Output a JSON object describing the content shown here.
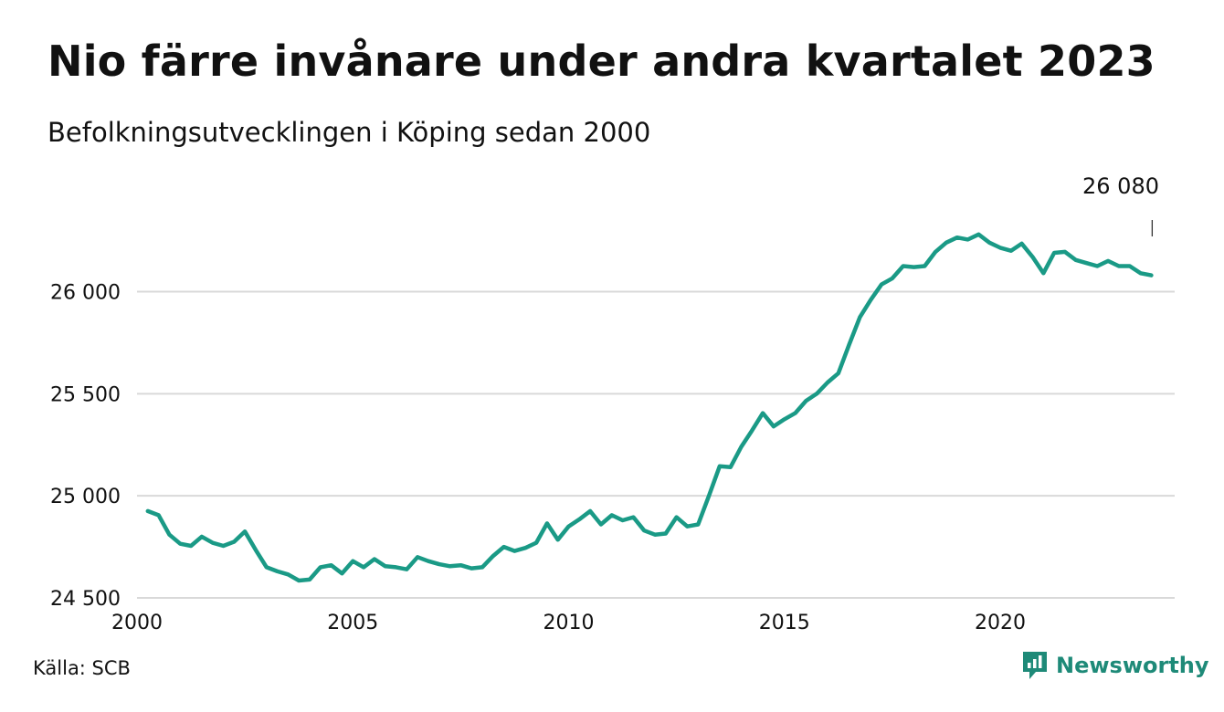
{
  "title": "Nio färre invånare under andra kvartalet 2023",
  "subtitle": "Befolkningsutvecklingen i Köping sedan 2000",
  "source": "Källa: SCB",
  "brand": {
    "name": "Newsworthy",
    "icon": "newsworthy-logo-icon",
    "color": "#1e8a78"
  },
  "colors": {
    "line": "#1a9a86",
    "grid": "#d9d9d9",
    "text": "#111111"
  },
  "chart_data": {
    "type": "line",
    "title": "Nio färre invånare under andra kvartalet 2023",
    "subtitle": "Befolkningsutvecklingen i Köping sedan 2000",
    "xlabel": "",
    "ylabel": "",
    "xlim": [
      2000,
      2024
    ],
    "ylim": [
      24500,
      26400
    ],
    "grid": true,
    "legend": "none",
    "x_ticks": [
      {
        "value": 2000,
        "label": "2000"
      },
      {
        "value": 2005,
        "label": "2005"
      },
      {
        "value": 2010,
        "label": "2010"
      },
      {
        "value": 2015,
        "label": "2015"
      },
      {
        "value": 2020,
        "label": "2020"
      }
    ],
    "y_ticks": [
      {
        "value": 24500,
        "label": "24 500"
      },
      {
        "value": 25000,
        "label": "25 000"
      },
      {
        "value": 25500,
        "label": "25 500"
      },
      {
        "value": 26000,
        "label": "26 000"
      }
    ],
    "annotation": {
      "x": 2023.5,
      "y": 26080,
      "label": "26 080"
    },
    "series": [
      {
        "x": [
          2000.25,
          2000.5,
          2000.75,
          2001.0,
          2001.25,
          2001.5,
          2001.75,
          2002.0,
          2002.25,
          2002.5,
          2002.75,
          2003.0,
          2003.25,
          2003.5,
          2003.75,
          2004.0,
          2004.25,
          2004.5,
          2004.75,
          2005.0,
          2005.25,
          2005.5,
          2005.75,
          2006.0,
          2006.25,
          2006.5,
          2006.75,
          2007.0,
          2007.25,
          2007.5,
          2007.75,
          2008.0,
          2008.25,
          2008.5,
          2008.75,
          2009.0,
          2009.25,
          2009.5,
          2009.75,
          2010.0,
          2010.25,
          2010.5,
          2010.75,
          2011.0,
          2011.25,
          2011.5,
          2011.75,
          2012.0,
          2012.25,
          2012.5,
          2012.75,
          2013.0,
          2013.25,
          2013.5,
          2013.75,
          2014.0,
          2014.25,
          2014.5,
          2014.75,
          2015.0,
          2015.25,
          2015.5,
          2015.75,
          2016.0,
          2016.25,
          2016.5,
          2016.75,
          2017.0,
          2017.25,
          2017.5,
          2017.75,
          2018.0,
          2018.25,
          2018.5,
          2018.75,
          2019.0,
          2019.25,
          2019.5,
          2019.75,
          2020.0,
          2020.25,
          2020.5,
          2020.75,
          2021.0,
          2021.25,
          2021.5,
          2021.75,
          2022.0,
          2022.25,
          2022.5,
          2022.75,
          2023.0,
          2023.25,
          2023.5
        ],
        "values": [
          24925,
          24905,
          24810,
          24765,
          24755,
          24800,
          24770,
          24755,
          24775,
          24825,
          24735,
          24650,
          24630,
          24615,
          24585,
          24590,
          24650,
          24660,
          24620,
          24680,
          24650,
          24690,
          24655,
          24650,
          24640,
          24700,
          24680,
          24665,
          24655,
          24660,
          24645,
          24650,
          24705,
          24750,
          24730,
          24745,
          24770,
          24865,
          24785,
          24850,
          24885,
          24925,
          24860,
          24905,
          24880,
          24895,
          24830,
          24810,
          24815,
          24895,
          24850,
          24860,
          25000,
          25145,
          25140,
          25240,
          25320,
          25405,
          25340,
          25375,
          25405,
          25465,
          25500,
          25555,
          25600,
          25740,
          25875,
          25960,
          26035,
          26065,
          26125,
          26120,
          26125,
          26195,
          26240,
          26265,
          26255,
          26280,
          26240,
          26215,
          26200,
          26235,
          26170,
          26090,
          26190,
          26195,
          26155,
          26140,
          26125,
          26150,
          26125,
          26125,
          26090,
          26080
        ]
      }
    ]
  }
}
